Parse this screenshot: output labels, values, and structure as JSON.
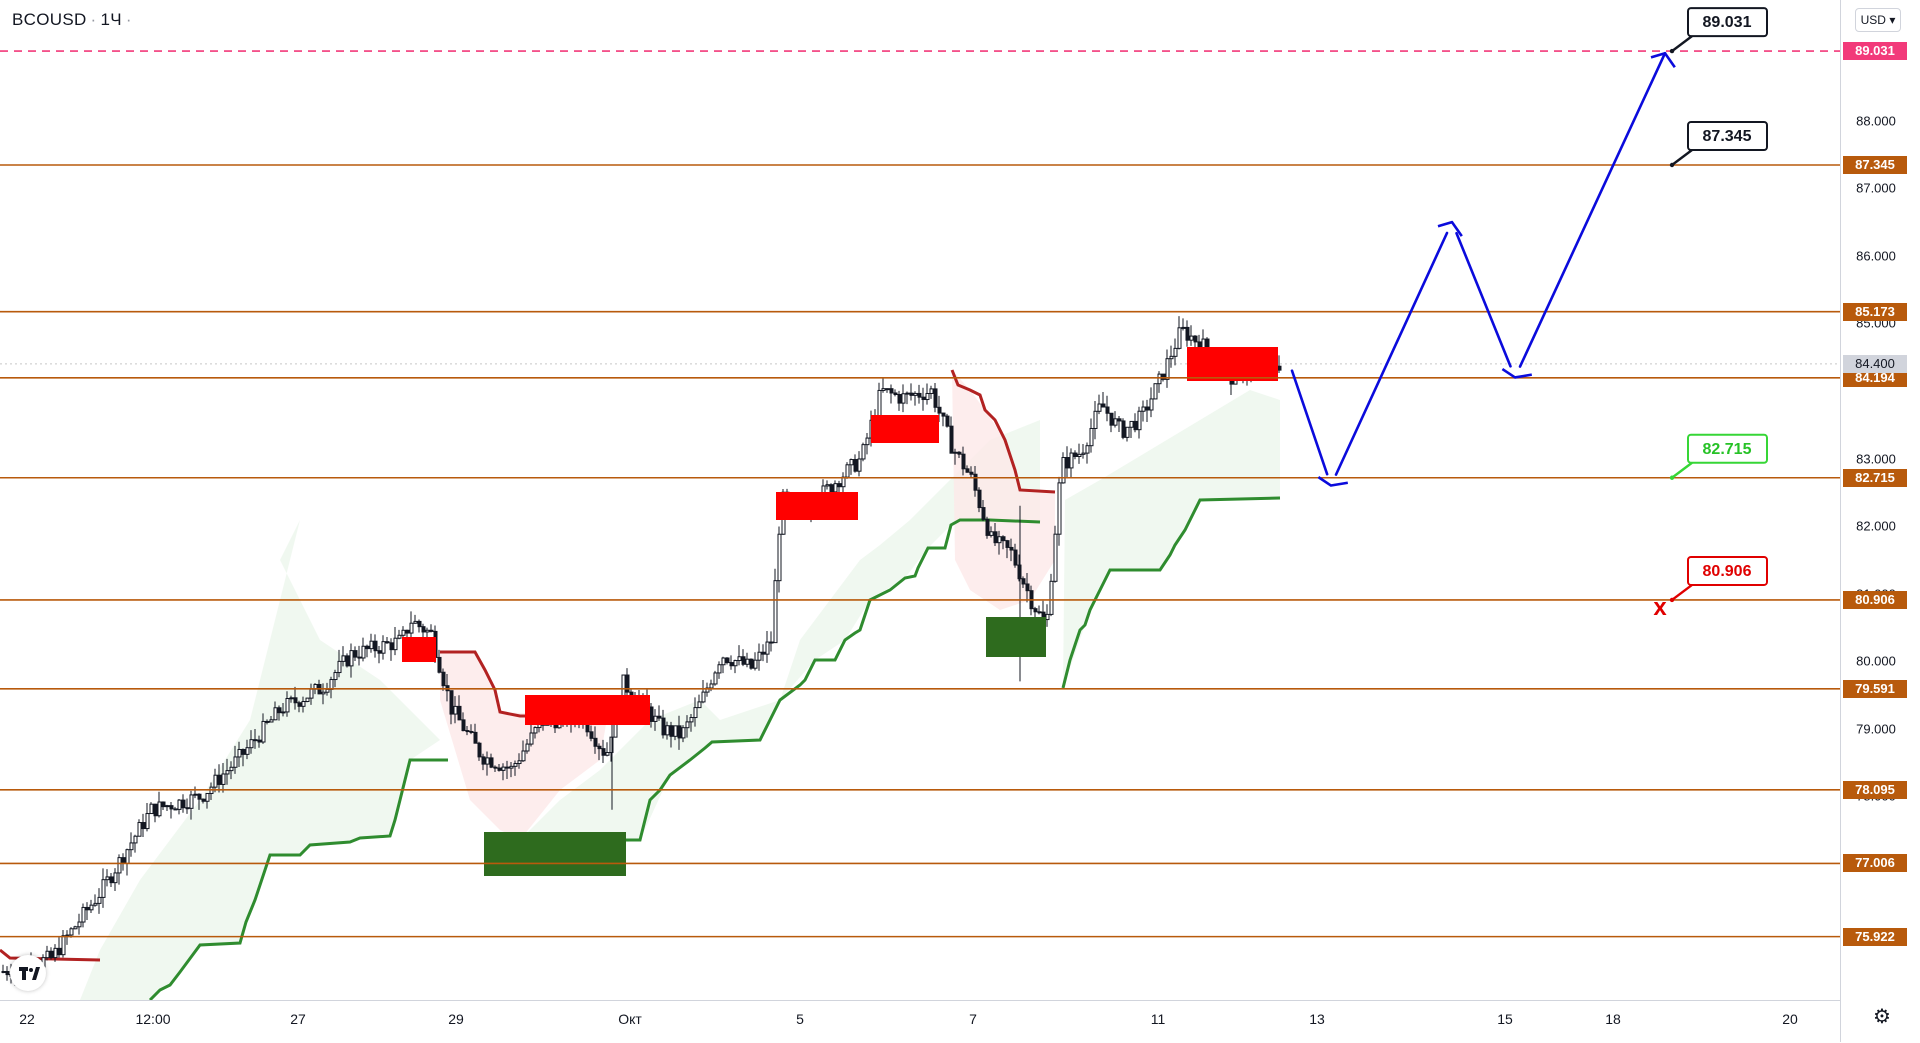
{
  "header": {
    "symbol": "BCOUSD",
    "interval": "1Ч",
    "currency": "USD"
  },
  "colors": {
    "level_line": "#b85a0c",
    "target_line": "#f23a7a",
    "bull_box": "#2e6b1e",
    "bear_box": "#ff0000",
    "arrow": "#0b0bdc",
    "up_candle": "#131722",
    "supertrend_up": "#2f8c2f",
    "supertrend_down": "#b22222"
  },
  "chart_data": {
    "type": "candlestick",
    "ylim": [
      75.4,
      89.9
    ],
    "x_tick_labels": [
      "22",
      "12:00",
      "27",
      "29",
      "Окт",
      "5",
      "7",
      "11",
      "13",
      "15",
      "18",
      "20"
    ],
    "y_tick_labels": [
      "88.000",
      "87.000",
      "86.000",
      "85.000",
      "83.000",
      "82.000",
      "81.000",
      "80.000",
      "79.000",
      "78.000",
      "77.000"
    ],
    "y_tick_values": [
      88,
      87,
      86,
      85,
      83,
      82,
      81,
      80,
      79,
      78,
      77
    ],
    "current_price": "84.400",
    "levels": [
      {
        "value": 89.031,
        "label": "89.031",
        "style": "dashed",
        "kind": "target"
      },
      {
        "value": 87.345,
        "label": "87.345",
        "style": "solid",
        "kind": "level"
      },
      {
        "value": 85.173,
        "label": "85.173",
        "style": "solid",
        "kind": "level"
      },
      {
        "value": 84.194,
        "label": "84.194",
        "style": "solid",
        "kind": "level"
      },
      {
        "value": 82.715,
        "label": "82.715",
        "style": "solid",
        "kind": "level"
      },
      {
        "value": 80.906,
        "label": "80.906",
        "style": "solid",
        "kind": "level"
      },
      {
        "value": 79.591,
        "label": "79.591",
        "style": "solid",
        "kind": "level"
      },
      {
        "value": 78.095,
        "label": "78.095",
        "style": "solid",
        "kind": "level"
      },
      {
        "value": 77.006,
        "label": "77.006",
        "style": "solid",
        "kind": "level"
      },
      {
        "value": 75.922,
        "label": "75.922",
        "style": "solid",
        "kind": "level"
      }
    ],
    "callouts": [
      {
        "label": "89.031",
        "value": 89.031,
        "kind": "black"
      },
      {
        "label": "87.345",
        "value": 87.345,
        "kind": "black"
      },
      {
        "label": "82.715",
        "value": 82.715,
        "kind": "green"
      },
      {
        "label": "80.906",
        "value": 80.906,
        "kind": "red"
      }
    ],
    "forecast_path": [
      {
        "x": "Oct 12",
        "y": 84.3
      },
      {
        "x": "Oct 13",
        "y": 82.6
      },
      {
        "x": "Oct 14",
        "y": 86.5
      },
      {
        "x": "Oct 15",
        "y": 84.2
      },
      {
        "x": "Oct 19",
        "y": 89.0
      }
    ],
    "stop_marker": {
      "value": 80.8,
      "label": "x"
    }
  }
}
